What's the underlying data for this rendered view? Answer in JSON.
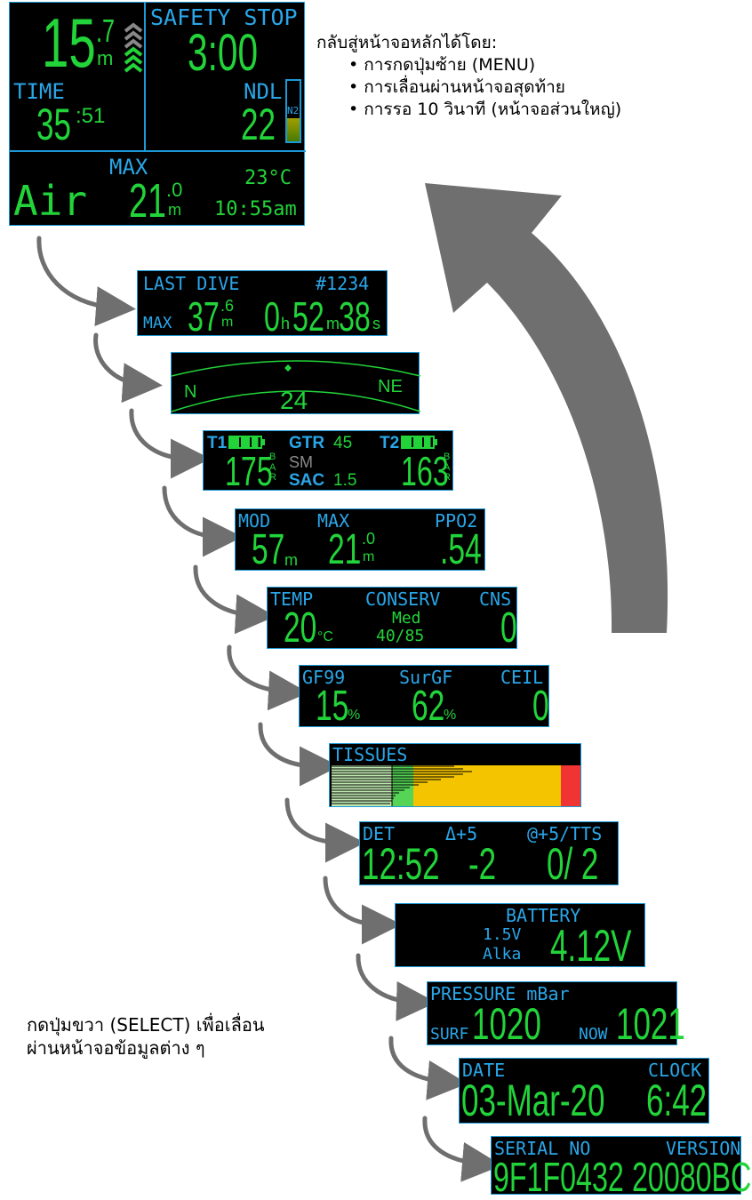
{
  "main_screen": {
    "depth_int": "15",
    "depth_dec": ".7",
    "depth_unit": "m",
    "safety_stop_label": "SAFETY STOP",
    "safety_stop_time": "3:00",
    "time_label": "TIME",
    "time_min": "35",
    "time_sec": ":51",
    "ndl_label": "NDL",
    "ndl_value": "22",
    "n2_label": "N2",
    "gas": "Air",
    "max_label": "MAX",
    "max_int": "21",
    "max_dec": ".0",
    "max_unit": "m",
    "temp": "23°C",
    "clock": "10:55am"
  },
  "return_note": {
    "heading": "กลับสู่หน้าจอหลักได้โดย:",
    "items": [
      "• การกดปุ่มซ้าย (MENU)",
      "• การเลื่อนผ่านหน้าจอสุดท้าย",
      "• การรอ 10 วินาที (หน้าจอส่วนใหญ่)"
    ]
  },
  "select_note": {
    "line1": "กดปุ่มขวา (SELECT) เพื่อเลื่อน",
    "line2": "ผ่านหน้าจอข้อมูลต่าง ๆ"
  },
  "last_dive": {
    "label": "LAST DIVE",
    "number": "#1234",
    "max_label": "MAX",
    "max_int": "37",
    "max_dec": ".6",
    "max_unit": "m",
    "hours": "0",
    "h": "h",
    "minutes": "52",
    "m": "m",
    "seconds": "38",
    "s": "s"
  },
  "compass": {
    "left": "N",
    "right": "NE",
    "heading": "24"
  },
  "tanks": {
    "t1_label": "T1",
    "t2_label": "T2",
    "gtr_label": "GTR",
    "gtr_value": "45",
    "t1_pressure": "175",
    "t2_pressure": "163",
    "unit": "BAR",
    "sm_label": "SM",
    "sac_label": "SAC",
    "sac_value": "1.5"
  },
  "mod_screen": {
    "mod_label": "MOD",
    "max_label": "MAX",
    "ppo2_label": "PPO2",
    "mod_value": "57",
    "mod_unit": "m",
    "max_int": "21",
    "max_dec": ".0",
    "max_unit": "m",
    "ppo2_value": ".54"
  },
  "temp_screen": {
    "temp_label": "TEMP",
    "conserv_label": "CONSERV",
    "cns_label": "CNS",
    "temp_value": "20",
    "temp_unit": "°C",
    "conserv_value": "Med",
    "conserv_gf": "40/85",
    "cns_value": "0"
  },
  "gf_screen": {
    "gf99_label": "GF99",
    "surgf_label": "SurGF",
    "ceil_label": "CEIL",
    "gf99_value": "15",
    "surgf_value": "62",
    "pct": "%",
    "ceil_value": "0"
  },
  "tissues": {
    "label": "TISSUES"
  },
  "det_screen": {
    "det_label": "DET",
    "delta_label": "Δ+5",
    "at_label": "@+5/TTS",
    "det_value": "12:52",
    "delta_value": "-2",
    "at_value": "0/ 2"
  },
  "battery": {
    "label": "BATTERY",
    "type_voltage": "1.5V",
    "type_name": "Alka",
    "voltage": "4.12V"
  },
  "pressure": {
    "label": "PRESSURE mBar",
    "surf_label": "SURF",
    "surf_value": "1020",
    "now_label": "NOW",
    "now_value": "1021"
  },
  "date_screen": {
    "date_label": "DATE",
    "clock_label": "CLOCK",
    "date_value": "03-Mar-20",
    "clock_value": "6:42"
  },
  "serial_screen": {
    "serial_label": "SERIAL NO",
    "version_label": "VERSION",
    "serial_value": "9F1F0432",
    "version_value": "20080BC"
  },
  "colors": {
    "screen_bg": "#000000",
    "screen_border": "#1d9ad6",
    "label_blue": "#2aa6e8",
    "value_green": "#22d43a",
    "arrow_grey": "#6f6f6f"
  }
}
